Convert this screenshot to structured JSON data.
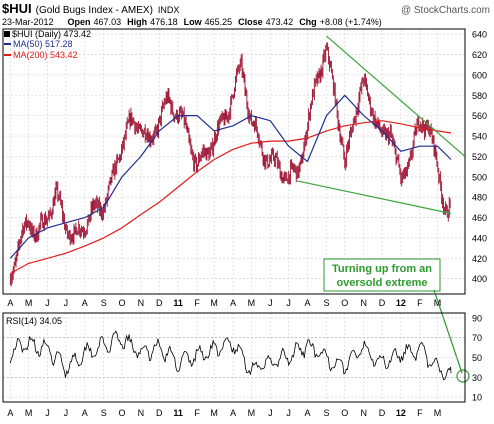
{
  "header": {
    "symbol": "$HUI",
    "name": "(Gold Bugs Index - AMEX)",
    "exchange": "INDX",
    "watermark": "@ StockCharts.com",
    "date": "23-Mar-2012",
    "open_label": "Open",
    "open": "467.03",
    "high_label": "High",
    "high": "476.18",
    "low_label": "Low",
    "low": "465.25",
    "close_label": "Close",
    "close": "473.42",
    "chg_label": "Chg",
    "chg": "+8.08 (+1.74%)"
  },
  "legend": {
    "price": "$HUI (Daily) 473.42",
    "ma50": "MA(50) 517.28",
    "ma200": "MA(200) 543.42"
  },
  "rsi_legend": "RSI(14) 34.05",
  "annotation": {
    "line1": "Turning up from an",
    "line2": "oversold extreme"
  },
  "colors": {
    "price_bars": "#9b1030",
    "ma50": "#1d2f8f",
    "ma200": "#e01a1a",
    "trendlines": "#3aa63a",
    "annotation_text": "#2e9a2e",
    "grid": "#cfcfcf",
    "rsi_line": "#000000"
  },
  "chart_data": [
    {
      "type": "line",
      "title": "$HUI (Gold Bugs Index - AMEX) Daily",
      "xlabel": "",
      "ylabel": "",
      "ylim": [
        385,
        645
      ],
      "yticks": [
        400,
        420,
        440,
        460,
        480,
        500,
        520,
        540,
        560,
        580,
        600,
        620,
        640
      ],
      "xticks": [
        "A",
        "M",
        "J",
        "J",
        "A",
        "S",
        "O",
        "N",
        "D",
        "11",
        "F",
        "M",
        "A",
        "M",
        "J",
        "J",
        "A",
        "S",
        "O",
        "N",
        "D",
        "12",
        "F",
        "M"
      ],
      "grid": true,
      "legend_position": "top-left",
      "series": [
        {
          "name": "$HUI (Daily)",
          "x": [
            "2010-04-01",
            "2010-04-15",
            "2010-05-01",
            "2010-05-15",
            "2010-06-01",
            "2010-06-15",
            "2010-07-01",
            "2010-07-15",
            "2010-08-01",
            "2010-08-15",
            "2010-09-01",
            "2010-09-15",
            "2010-10-01",
            "2010-10-15",
            "2010-11-01",
            "2010-11-15",
            "2010-12-01",
            "2010-12-15",
            "2011-01-01",
            "2011-01-15",
            "2011-02-01",
            "2011-02-15",
            "2011-03-01",
            "2011-03-15",
            "2011-04-01",
            "2011-04-15",
            "2011-05-01",
            "2011-05-15",
            "2011-06-01",
            "2011-06-15",
            "2011-07-01",
            "2011-07-15",
            "2011-08-01",
            "2011-08-15",
            "2011-09-01",
            "2011-09-15",
            "2011-10-01",
            "2011-10-15",
            "2011-11-01",
            "2011-11-15",
            "2011-12-01",
            "2011-12-15",
            "2012-01-01",
            "2012-01-15",
            "2012-02-01",
            "2012-02-15",
            "2012-03-01",
            "2012-03-15",
            "2012-03-23"
          ],
          "values": [
            400,
            425,
            460,
            445,
            470,
            482,
            448,
            432,
            455,
            470,
            480,
            495,
            530,
            545,
            550,
            535,
            565,
            575,
            560,
            535,
            510,
            525,
            545,
            555,
            580,
            602,
            550,
            535,
            520,
            515,
            495,
            500,
            540,
            600,
            625,
            590,
            505,
            555,
            585,
            570,
            540,
            555,
            490,
            515,
            545,
            555,
            510,
            475,
            473
          ]
        },
        {
          "name": "MA(50)",
          "x": [
            "2010-04-01",
            "2010-05-01",
            "2010-06-01",
            "2010-07-01",
            "2010-08-01",
            "2010-09-01",
            "2010-10-01",
            "2010-11-01",
            "2010-12-01",
            "2011-01-01",
            "2011-02-01",
            "2011-03-01",
            "2011-04-01",
            "2011-05-01",
            "2011-06-01",
            "2011-07-01",
            "2011-08-01",
            "2011-09-01",
            "2011-10-01",
            "2011-11-01",
            "2011-12-01",
            "2012-01-01",
            "2012-02-01",
            "2012-03-01",
            "2012-03-23"
          ],
          "values": [
            420,
            440,
            450,
            455,
            460,
            470,
            500,
            520,
            545,
            560,
            560,
            545,
            550,
            560,
            555,
            530,
            515,
            560,
            580,
            560,
            545,
            525,
            530,
            530,
            517
          ]
        },
        {
          "name": "MA(200)",
          "x": [
            "2010-04-01",
            "2010-05-01",
            "2010-06-01",
            "2010-07-01",
            "2010-08-01",
            "2010-09-01",
            "2010-10-01",
            "2010-11-01",
            "2010-12-01",
            "2011-01-01",
            "2011-02-01",
            "2011-03-01",
            "2011-04-01",
            "2011-05-01",
            "2011-06-01",
            "2011-07-01",
            "2011-08-01",
            "2011-09-01",
            "2011-10-01",
            "2011-11-01",
            "2011-12-01",
            "2012-01-01",
            "2012-02-01",
            "2012-03-01",
            "2012-03-23"
          ],
          "values": [
            405,
            415,
            420,
            425,
            432,
            440,
            450,
            463,
            475,
            490,
            505,
            517,
            527,
            533,
            535,
            535,
            538,
            545,
            550,
            553,
            555,
            552,
            548,
            545,
            543
          ]
        },
        {
          "name": "Upper trendline",
          "x": [
            "2011-09-01",
            "2012-04-15"
          ],
          "values": [
            638,
            520
          ]
        },
        {
          "name": "Lower trendline",
          "x": [
            "2011-07-15",
            "2012-03-23"
          ],
          "values": [
            496,
            464
          ]
        }
      ]
    },
    {
      "type": "line",
      "title": "RSI(14)",
      "ylim": [
        5,
        95
      ],
      "yticks": [
        10,
        30,
        50,
        70,
        90
      ],
      "xticks": [
        "A",
        "M",
        "J",
        "J",
        "A",
        "S",
        "O",
        "N",
        "D",
        "11",
        "F",
        "M",
        "A",
        "M",
        "J",
        "J",
        "A",
        "S",
        "O",
        "N",
        "D",
        "12",
        "F",
        "M"
      ],
      "grid": true,
      "series": [
        {
          "name": "RSI(14)",
          "x": [
            "2010-04-01",
            "2010-05-01",
            "2010-06-01",
            "2010-07-01",
            "2010-08-01",
            "2010-09-01",
            "2010-10-01",
            "2010-11-01",
            "2010-12-01",
            "2011-01-01",
            "2011-02-01",
            "2011-03-01",
            "2011-04-01",
            "2011-05-01",
            "2011-06-01",
            "2011-07-01",
            "2011-08-01",
            "2011-09-01",
            "2011-10-01",
            "2011-11-01",
            "2011-12-01",
            "2012-01-01",
            "2012-02-01",
            "2012-03-01",
            "2012-03-23"
          ],
          "values": [
            55,
            65,
            58,
            40,
            55,
            62,
            68,
            55,
            60,
            45,
            52,
            58,
            64,
            38,
            45,
            50,
            62,
            48,
            42,
            60,
            45,
            55,
            58,
            38,
            34.05
          ]
        }
      ]
    }
  ]
}
